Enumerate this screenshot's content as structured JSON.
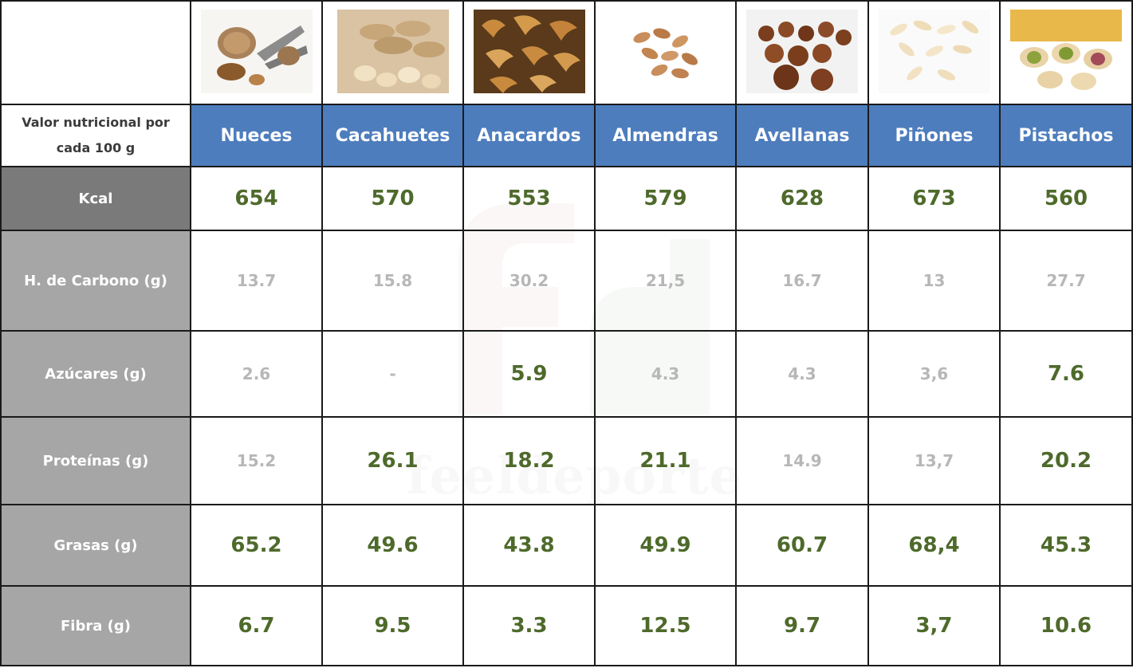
{
  "header_label": [
    "Valor nutricional por",
    "cada 100 g"
  ],
  "nuts": [
    {
      "name": "Nueces",
      "icon": "walnut-photo"
    },
    {
      "name": "Cacahuetes",
      "icon": "peanut-photo"
    },
    {
      "name": "Anacardos",
      "icon": "cashew-photo"
    },
    {
      "name": "Almendras",
      "icon": "almond-photo"
    },
    {
      "name": "Avellanas",
      "icon": "hazelnut-photo"
    },
    {
      "name": "Piñones",
      "icon": "pine-nut-photo"
    },
    {
      "name": "Pistachos",
      "icon": "pistachio-photo"
    }
  ],
  "rows": [
    {
      "label": "Kcal",
      "values": [
        {
          "v": "654",
          "hi": true
        },
        {
          "v": "570",
          "hi": true
        },
        {
          "v": "553",
          "hi": true
        },
        {
          "v": "579",
          "hi": true
        },
        {
          "v": "628",
          "hi": true
        },
        {
          "v": "673",
          "hi": true
        },
        {
          "v": "560",
          "hi": true
        }
      ]
    },
    {
      "label": "H. de Carbono (g)",
      "values": [
        {
          "v": "13.7",
          "hi": false
        },
        {
          "v": "15.8",
          "hi": false
        },
        {
          "v": "30.2",
          "hi": false
        },
        {
          "v": "21,5",
          "hi": false
        },
        {
          "v": "16.7",
          "hi": false
        },
        {
          "v": "13",
          "hi": false
        },
        {
          "v": "27.7",
          "hi": false
        }
      ]
    },
    {
      "label": "Azúcares (g)",
      "values": [
        {
          "v": "2.6",
          "hi": false
        },
        {
          "v": "-",
          "hi": false
        },
        {
          "v": "5.9",
          "hi": true
        },
        {
          "v": "4.3",
          "hi": false
        },
        {
          "v": "4.3",
          "hi": false
        },
        {
          "v": "3,6",
          "hi": false
        },
        {
          "v": "7.6",
          "hi": true
        }
      ]
    },
    {
      "label": "Proteínas (g)",
      "values": [
        {
          "v": "15.2",
          "hi": false
        },
        {
          "v": "26.1",
          "hi": true
        },
        {
          "v": "18.2",
          "hi": true
        },
        {
          "v": "21.1",
          "hi": true
        },
        {
          "v": "14.9",
          "hi": false
        },
        {
          "v": "13,7",
          "hi": false
        },
        {
          "v": "20.2",
          "hi": true
        }
      ]
    },
    {
      "label": "Grasas (g)",
      "values": [
        {
          "v": "65.2",
          "hi": true
        },
        {
          "v": "49.6",
          "hi": true
        },
        {
          "v": "43.8",
          "hi": true
        },
        {
          "v": "49.9",
          "hi": true
        },
        {
          "v": "60.7",
          "hi": true
        },
        {
          "v": "68,4",
          "hi": true
        },
        {
          "v": "45.3",
          "hi": true
        }
      ]
    },
    {
      "label": "Fibra (g)",
      "values": [
        {
          "v": "6.7",
          "hi": true
        },
        {
          "v": "9.5",
          "hi": true
        },
        {
          "v": "3.3",
          "hi": true
        },
        {
          "v": "12.5",
          "hi": true
        },
        {
          "v": "9.7",
          "hi": true
        },
        {
          "v": "3,7",
          "hi": true
        },
        {
          "v": "10.6",
          "hi": true
        }
      ]
    }
  ],
  "watermark": {
    "logo": "fd",
    "text": "feeldeporte"
  },
  "colors": {
    "header_blue": "#4d7dbd",
    "highlight_green": "#4e6a2b",
    "muted_gray": "#b7b7b7",
    "kcal_label_bg": "#7a7a7a",
    "label_bg": "#a6a6a6"
  }
}
